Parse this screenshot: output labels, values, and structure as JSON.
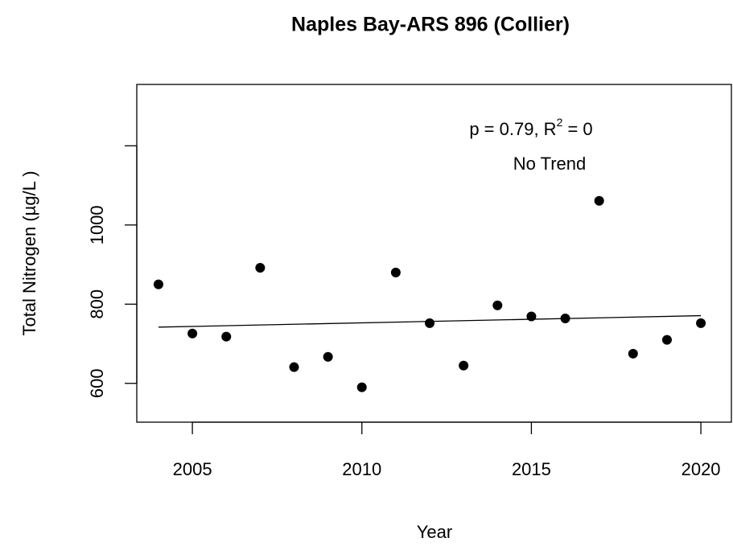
{
  "chart_data": {
    "type": "scatter",
    "title": "Naples Bay-ARS 896 (Collier)",
    "x_label": "Year",
    "y_label": "Total Nitrogen (µg/L )",
    "x": [
      2004,
      2005,
      2006,
      2007,
      2008,
      2009,
      2010,
      2011,
      2012,
      2013,
      2014,
      2015,
      2016,
      2017,
      2018,
      2019,
      2020
    ],
    "values": [
      850,
      726,
      718,
      892,
      641,
      667,
      590,
      880,
      752,
      645,
      797,
      769,
      764,
      1061,
      675,
      710,
      752
    ],
    "color": "#000000",
    "trend": {
      "x": [
        2004,
        2020
      ],
      "values": [
        742,
        771
      ],
      "color": "#000000"
    },
    "annotation": {
      "text": "p = 0.79, R",
      "superscript": "2",
      "suffix": " = 0",
      "note": "No Trend"
    },
    "xlim": [
      2003.36,
      2020.9
    ],
    "ylim": [
      502,
      1355
    ],
    "xticks": [
      2005,
      2010,
      2015,
      2020
    ],
    "yticks": [
      600,
      800,
      1000,
      {
        "value": 1200,
        "label": null
      }
    ]
  }
}
